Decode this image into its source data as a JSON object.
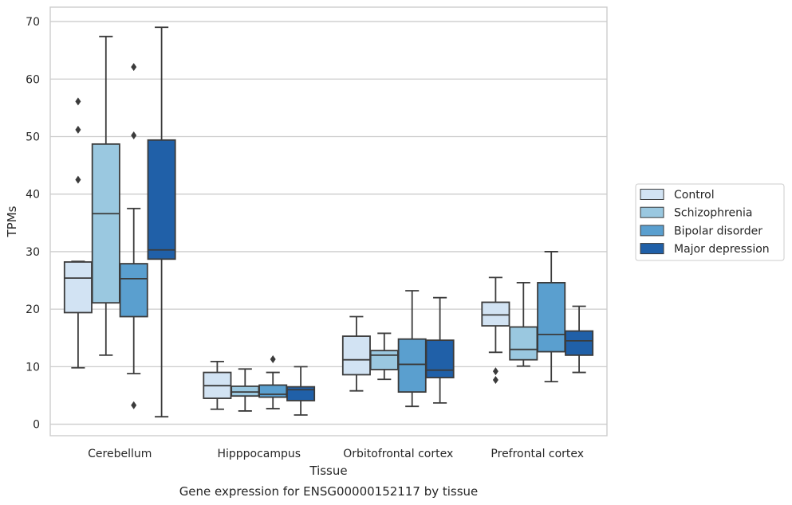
{
  "chart_data": {
    "type": "box",
    "xlabel": "Tissue",
    "ylabel": "TPMs",
    "caption": "Gene expression for ENSG00000152117 by tissue",
    "ylim": [
      -2,
      72.5
    ],
    "yticks": [
      0,
      10,
      20,
      30,
      40,
      50,
      60,
      70
    ],
    "grid": "horizontal",
    "legend_position": "right",
    "categories": [
      "Cerebellum",
      "Hipppocampus",
      "Orbitofrontal cortex",
      "Prefrontal cortex"
    ],
    "series": [
      {
        "name": "Control",
        "color": "#d2e3f3",
        "boxes": [
          {
            "whislo": 9.8,
            "q1": 19.4,
            "med": 25.4,
            "q3": 28.2,
            "whishi": 28.3,
            "fliers": [
              42.5,
              51.2,
              56.1
            ]
          },
          {
            "whislo": 2.6,
            "q1": 4.5,
            "med": 6.7,
            "q3": 9.0,
            "whishi": 10.9,
            "fliers": []
          },
          {
            "whislo": 5.8,
            "q1": 8.6,
            "med": 11.2,
            "q3": 15.3,
            "whishi": 18.7,
            "fliers": []
          },
          {
            "whislo": 12.5,
            "q1": 17.1,
            "med": 19.0,
            "q3": 21.2,
            "whishi": 25.5,
            "fliers": [
              7.7,
              9.2
            ]
          }
        ]
      },
      {
        "name": "Schizophrenia",
        "color": "#9ac8e0",
        "boxes": [
          {
            "whislo": 12.0,
            "q1": 21.1,
            "med": 36.6,
            "q3": 48.7,
            "whishi": 67.4,
            "fliers": []
          },
          {
            "whislo": 2.3,
            "q1": 4.9,
            "med": 5.6,
            "q3": 6.6,
            "whishi": 9.6,
            "fliers": []
          },
          {
            "whislo": 7.8,
            "q1": 9.5,
            "med": 12.0,
            "q3": 12.8,
            "whishi": 15.8,
            "fliers": []
          },
          {
            "whislo": 10.1,
            "q1": 11.2,
            "med": 13.0,
            "q3": 16.9,
            "whishi": 24.6,
            "fliers": []
          }
        ]
      },
      {
        "name": "Bipolar disorder",
        "color": "#5a9fcf",
        "boxes": [
          {
            "whislo": 8.8,
            "q1": 18.7,
            "med": 25.3,
            "q3": 27.9,
            "whishi": 37.5,
            "fliers": [
              3.3,
              50.2,
              62.1
            ]
          },
          {
            "whislo": 2.7,
            "q1": 4.7,
            "med": 5.2,
            "q3": 6.8,
            "whishi": 9.0,
            "fliers": [
              11.3
            ]
          },
          {
            "whislo": 3.1,
            "q1": 5.6,
            "med": 10.4,
            "q3": 14.8,
            "whishi": 23.2,
            "fliers": []
          },
          {
            "whislo": 7.4,
            "q1": 12.6,
            "med": 15.6,
            "q3": 24.6,
            "whishi": 30.0,
            "fliers": []
          }
        ]
      },
      {
        "name": "Major depression",
        "color": "#2060a8",
        "boxes": [
          {
            "whislo": 1.3,
            "q1": 28.7,
            "med": 30.3,
            "q3": 49.4,
            "whishi": 69.0,
            "fliers": []
          },
          {
            "whislo": 1.6,
            "q1": 4.1,
            "med": 6.0,
            "q3": 6.5,
            "whishi": 10.0,
            "fliers": []
          },
          {
            "whislo": 3.7,
            "q1": 8.1,
            "med": 9.4,
            "q3": 14.6,
            "whishi": 22.0,
            "fliers": []
          },
          {
            "whislo": 9.0,
            "q1": 12.0,
            "med": 14.5,
            "q3": 16.2,
            "whishi": 20.5,
            "fliers": []
          }
        ]
      }
    ]
  }
}
